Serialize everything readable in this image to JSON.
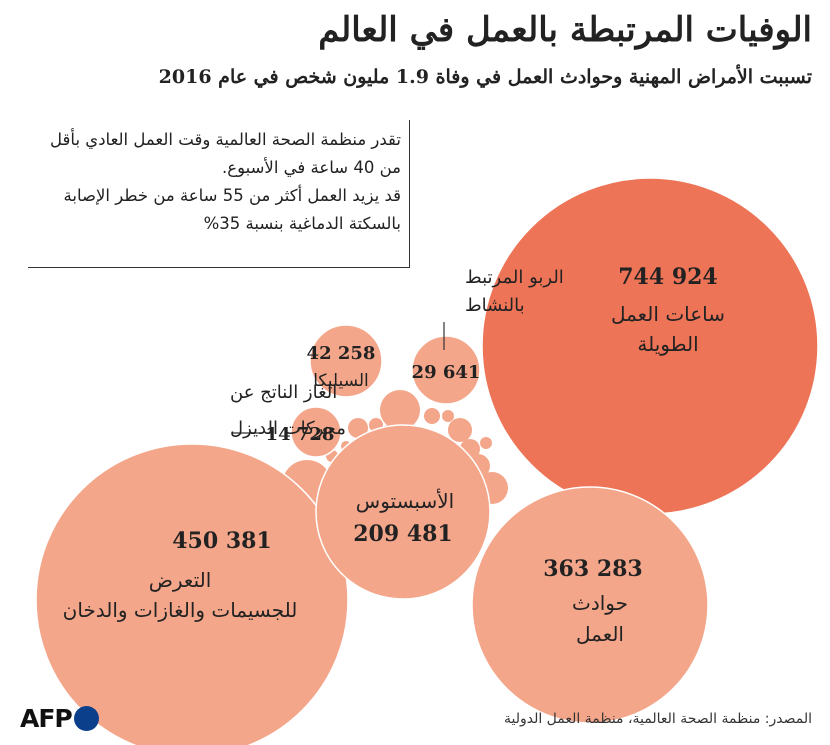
{
  "title": "الوفيات المرتبطة بالعمل في العالم",
  "subtitle": "تسببت الأمراض المهنية وحوادث العمل في وفاة 1.9 مليون شخص في عام 2016",
  "note": {
    "line1": "تقدر منظمة الصحة العالمية وقت العمل العادي بأقل من 40 ساعة في الأسبوع.",
    "line2": "قد يزيد العمل أكثر من 55 ساعة من خطر الإصابة بالسكتة الدماغية بنسبة 35%"
  },
  "source": "المصدر: منظمة الصحة العالمية، منظمة العمل الدولية",
  "logo": {
    "text": "AFP",
    "dot_color": "#0b3f8c"
  },
  "colors": {
    "highlight": "#ee7457",
    "bubble": "#f4a68a",
    "text": "#222222"
  },
  "chart_data": {
    "type": "bubble",
    "unit": "deaths",
    "year": 2016,
    "series": [
      {
        "id": "long-hours",
        "name": "ساعات العمل الطويلة",
        "value": 744924,
        "value_label": "744 924",
        "color": "#ee7457"
      },
      {
        "id": "particulate",
        "name": "التعرض للجسيمات والغازات والدخان",
        "value": 450381,
        "value_label": "450 381",
        "color": "#f4a68a"
      },
      {
        "id": "accidents",
        "name": "حوادث العمل",
        "value": 363283,
        "value_label": "363 283",
        "color": "#f4a68a"
      },
      {
        "id": "asbestos",
        "name": "الأسبستوس",
        "value": 209481,
        "value_label": "209 481",
        "color": "#f4a68a"
      },
      {
        "id": "silica",
        "name": "السيليكا",
        "value": 42258,
        "value_label": "42 258",
        "color": "#f4a68a"
      },
      {
        "id": "asthma",
        "name": "الربو المرتبط بالنشاط",
        "value": 29641,
        "value_label": "29 641",
        "color": "#f4a68a"
      },
      {
        "id": "diesel",
        "name": "الغاز الناتج عن محركات الديزل",
        "value": 14728,
        "value_label": "14 728",
        "color": "#f4a68a"
      }
    ]
  }
}
